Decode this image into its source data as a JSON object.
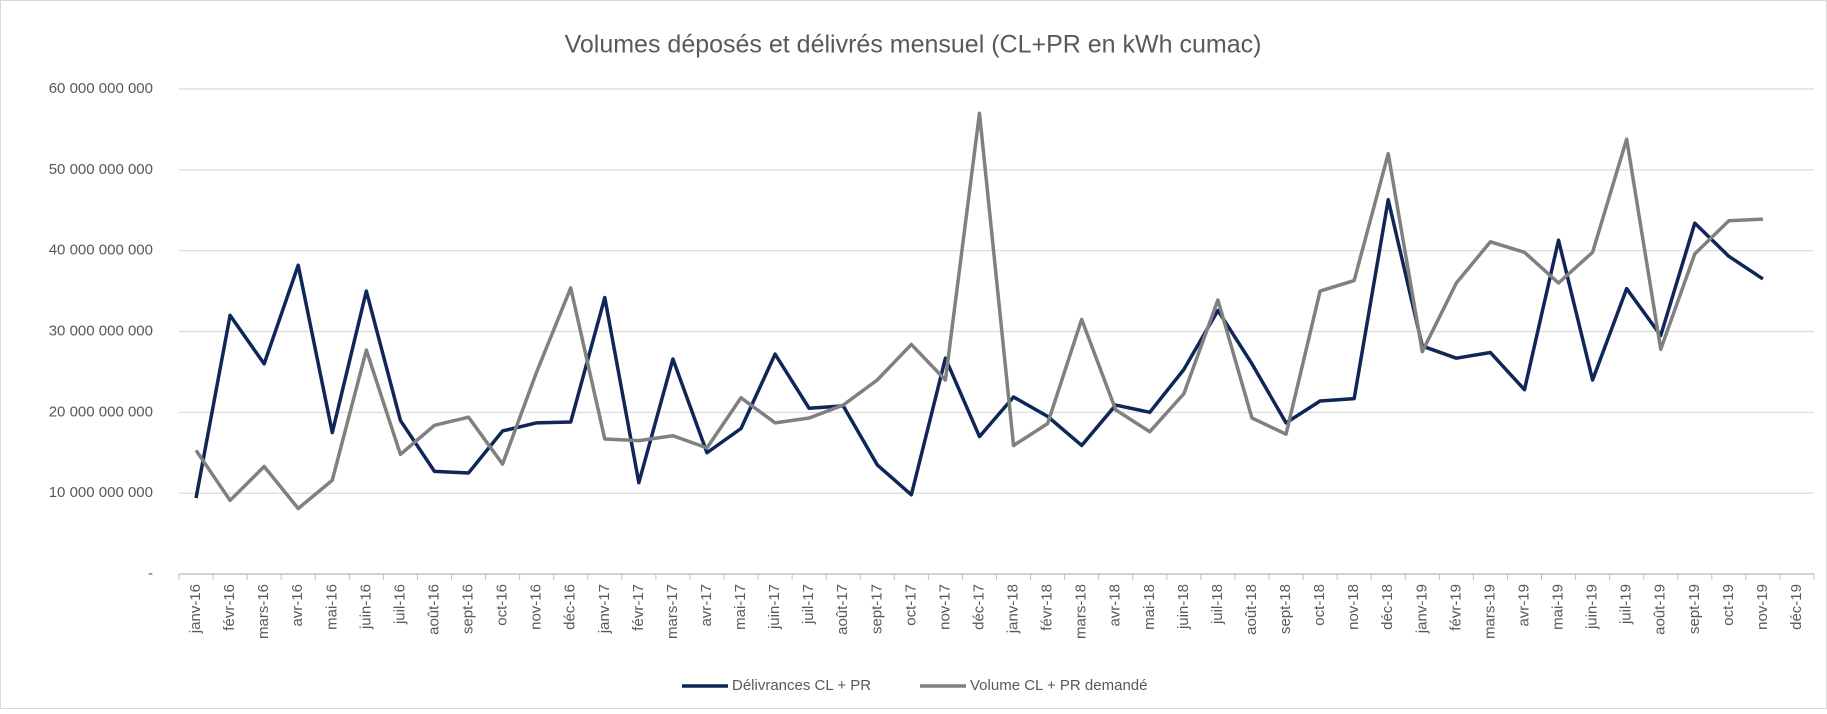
{
  "chart_data": {
    "type": "line",
    "title": "Volumes déposés et délivrés mensuel (CL+PR en kWh cumac)",
    "categories": [
      "janv-16",
      "févr-16",
      "mars-16",
      "avr-16",
      "mai-16",
      "juin-16",
      "juil-16",
      "août-16",
      "sept-16",
      "oct-16",
      "nov-16",
      "déc-16",
      "janv-17",
      "févr-17",
      "mars-17",
      "avr-17",
      "mai-17",
      "juin-17",
      "juil-17",
      "août-17",
      "sept-17",
      "oct-17",
      "nov-17",
      "déc-17",
      "janv-18",
      "févr-18",
      "mars-18",
      "avr-18",
      "mai-18",
      "juin-18",
      "juil-18",
      "août-18",
      "sept-18",
      "oct-18",
      "nov-18",
      "déc-18",
      "janv-19",
      "févr-19",
      "mars-19",
      "avr-19",
      "mai-19",
      "juin-19",
      "juil-19",
      "août-19",
      "sept-19",
      "oct-19",
      "nov-19",
      "déc-19"
    ],
    "series": [
      {
        "name": "Délivrances CL + PR",
        "color": "#0e2658",
        "values": [
          9400000000,
          32000000000,
          26000000000,
          38200000000,
          17500000000,
          35000000000,
          19000000000,
          12700000000,
          12500000000,
          17700000000,
          18700000000,
          18800000000,
          34200000000,
          11300000000,
          26600000000,
          15000000000,
          18000000000,
          27200000000,
          20500000000,
          20800000000,
          13500000000,
          9800000000,
          26700000000,
          17000000000,
          21900000000,
          19500000000,
          15900000000,
          20900000000,
          20000000000,
          25300000000,
          32600000000,
          26000000000,
          18700000000,
          21400000000,
          21700000000,
          46300000000,
          28200000000,
          26700000000,
          27400000000,
          22800000000,
          41300000000,
          24000000000,
          35300000000,
          29500000000,
          43400000000,
          39300000000,
          36500000000,
          null
        ]
      },
      {
        "name": "Volume CL + PR demandé",
        "color": "#808080",
        "values": [
          15300000000,
          9100000000,
          13300000000,
          8100000000,
          11600000000,
          27700000000,
          14800000000,
          18400000000,
          19400000000,
          13600000000,
          25000000000,
          35400000000,
          16700000000,
          16500000000,
          17100000000,
          15600000000,
          21800000000,
          18700000000,
          19300000000,
          20900000000,
          24000000000,
          28400000000,
          24000000000,
          57000000000,
          15900000000,
          18600000000,
          31500000000,
          20300000000,
          17600000000,
          22300000000,
          33900000000,
          19300000000,
          17300000000,
          35000000000,
          36300000000,
          52000000000,
          27500000000,
          36000000000,
          41100000000,
          39800000000,
          36000000000,
          39800000000,
          53800000000,
          27800000000,
          39600000000,
          43700000000,
          43900000000,
          null
        ]
      }
    ],
    "ylim": [
      0,
      60000000000
    ],
    "yticks": [
      {
        "value": 0,
        "label": "-"
      },
      {
        "value": 10000000000,
        "label": "10 000 000 000"
      },
      {
        "value": 20000000000,
        "label": "20 000 000 000"
      },
      {
        "value": 30000000000,
        "label": "30 000 000 000"
      },
      {
        "value": 40000000000,
        "label": "40 000 000 000"
      },
      {
        "value": 50000000000,
        "label": "50 000 000 000"
      },
      {
        "value": 60000000000,
        "label": "60 000 000 000"
      }
    ],
    "grid": true,
    "legend": "bottom"
  }
}
